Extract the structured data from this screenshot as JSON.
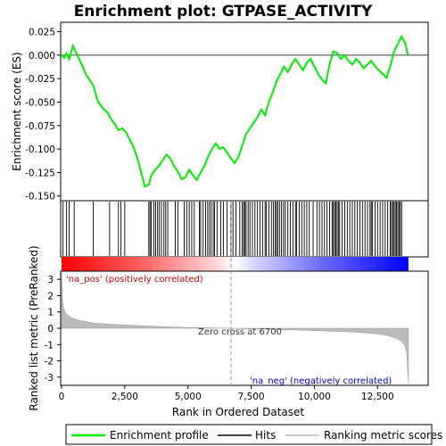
{
  "chart_data": {
    "type": "line",
    "title": "Enrichment plot: GTPASE_ACTIVITY",
    "upper_panel": {
      "ylabel": "Enrichment score (ES)",
      "ylim": [
        -0.155,
        0.035
      ],
      "yticks": [
        0.025,
        0.0,
        -0.025,
        -0.05,
        -0.075,
        -0.1,
        -0.125,
        -0.15
      ],
      "ytick_labels": [
        "0.025",
        "0.000",
        "-0.025",
        "-0.050",
        "-0.075",
        "-0.100",
        "-0.125",
        "-0.150"
      ],
      "series_color": "#00ee00",
      "es_profile": {
        "x": [
          0,
          100,
          200,
          300,
          450,
          550,
          800,
          1000,
          1250,
          1450,
          1650,
          1850,
          1950,
          2100,
          2250,
          2400,
          2550,
          2700,
          2850,
          3000,
          3150,
          3300,
          3450,
          3550,
          3700,
          3850,
          4000,
          4150,
          4300,
          4450,
          4600,
          4750,
          4900,
          5050,
          5200,
          5350,
          5500,
          5650,
          5800,
          5950,
          6100,
          6250,
          6400,
          6550,
          6700,
          6850,
          7000,
          7150,
          7300,
          7450,
          7600,
          7750,
          7900,
          8050,
          8200,
          8350,
          8500,
          8650,
          8800,
          8950,
          9100,
          9250,
          9400,
          9550,
          9700,
          9850,
          10000,
          10150,
          10300,
          10450,
          10600,
          10750,
          10900,
          11050,
          11200,
          11350,
          11500,
          11650,
          11800,
          11950,
          12100,
          12250,
          12400,
          12550,
          12700,
          12850,
          13000,
          13150,
          13300,
          13450,
          13600,
          13700
        ],
        "y": [
          0.0,
          -0.003,
          0.002,
          -0.004,
          0.01,
          0.004,
          -0.01,
          -0.022,
          -0.032,
          -0.05,
          -0.057,
          -0.062,
          -0.068,
          -0.073,
          -0.08,
          -0.078,
          -0.082,
          -0.09,
          -0.098,
          -0.11,
          -0.125,
          -0.14,
          -0.138,
          -0.128,
          -0.122,
          -0.118,
          -0.112,
          -0.106,
          -0.11,
          -0.118,
          -0.124,
          -0.132,
          -0.13,
          -0.122,
          -0.128,
          -0.133,
          -0.125,
          -0.118,
          -0.108,
          -0.1,
          -0.094,
          -0.1,
          -0.098,
          -0.104,
          -0.11,
          -0.115,
          -0.108,
          -0.096,
          -0.084,
          -0.078,
          -0.072,
          -0.066,
          -0.058,
          -0.064,
          -0.05,
          -0.04,
          -0.028,
          -0.02,
          -0.012,
          -0.018,
          -0.01,
          -0.004,
          -0.01,
          -0.016,
          -0.008,
          -0.004,
          -0.012,
          -0.02,
          -0.026,
          -0.03,
          -0.01,
          0.004,
          0.002,
          -0.004,
          0.0,
          -0.006,
          -0.01,
          -0.004,
          -0.008,
          -0.014,
          -0.01,
          -0.006,
          -0.012,
          -0.016,
          -0.02,
          -0.024,
          -0.012,
          0.004,
          0.012,
          0.02,
          0.012,
          0.0
        ]
      },
      "hits": [
        60,
        200,
        300,
        500,
        1250,
        1900,
        2250,
        2350,
        2500,
        3450,
        3500,
        3550,
        3650,
        3720,
        3800,
        3870,
        3950,
        4050,
        4120,
        4200,
        4500,
        4600,
        4850,
        4950,
        5050,
        5150,
        5250,
        5450,
        5500,
        5600,
        5700,
        5780,
        5850,
        5920,
        6000,
        6050,
        6150,
        6300,
        6400,
        6550,
        6700,
        6780,
        6900,
        7050,
        7150,
        7200,
        7250,
        7300,
        7380,
        7450,
        7550,
        7650,
        7750,
        7850,
        7950,
        8050,
        8100,
        8200,
        8300,
        8380,
        8450,
        8500,
        8550,
        8620,
        8700,
        8780,
        8850,
        8950,
        9050,
        9150,
        9250,
        9300,
        9400,
        9500,
        9600,
        9700,
        9800,
        9950,
        10100,
        10200,
        10300,
        10400,
        10500,
        10600,
        10700,
        10750,
        10800,
        10850,
        10900,
        10950,
        11000,
        11100,
        11200,
        11300,
        11400,
        11500,
        11600,
        11700,
        11800,
        11900,
        12000,
        12100,
        12200,
        12250,
        12300,
        12400,
        12500,
        12600,
        12700,
        12800,
        12900,
        13000,
        13050,
        13100,
        13150,
        13200,
        13250,
        13300,
        13350,
        13400,
        13450
      ]
    },
    "lower_panel": {
      "ylabel": "Ranked list metric (PreRanked)",
      "ylim": [
        -3.5,
        3.5
      ],
      "yticks": [
        3,
        2,
        1,
        0,
        -1,
        -2,
        -3
      ],
      "ytick_labels": [
        "3",
        "2",
        "1",
        "0",
        "-1",
        "-2",
        "-3"
      ],
      "xlabel": "Rank in Ordered Dataset",
      "metric": {
        "x": [
          0,
          30,
          80,
          150,
          250,
          400,
          600,
          900,
          1300,
          2000,
          3000,
          4000,
          5000,
          6000,
          6700,
          7500,
          8500,
          9500,
          10500,
          11500,
          12000,
          12500,
          12900,
          13200,
          13400,
          13550,
          13650,
          13720
        ],
        "y": [
          3.4,
          1.8,
          1.25,
          0.95,
          0.8,
          0.65,
          0.52,
          0.42,
          0.32,
          0.24,
          0.17,
          0.1,
          0.05,
          0.02,
          0.0,
          -0.04,
          -0.08,
          -0.12,
          -0.17,
          -0.23,
          -0.28,
          -0.35,
          -0.45,
          -0.6,
          -0.75,
          -1.0,
          -1.5,
          -3.4
        ]
      },
      "pos_label": "'na_pos' (positively correlated)",
      "neg_label": "'na_neg' (negatively correlated)",
      "zero_cross_label": "Zero cross at 6700",
      "zero_cross": 6700
    },
    "xlim": [
      0,
      14500
    ],
    "xticks": [
      0,
      2500,
      5000,
      7500,
      10000,
      12500
    ],
    "xtick_labels": [
      "0",
      "2,500",
      "5,000",
      "7,500",
      "10,000",
      "12,500"
    ],
    "colors": {
      "pos": "#dd0000",
      "neg": "#0000dd",
      "profile": "#00ee00",
      "metric_fill": "#bbbbbb"
    },
    "legend": {
      "position": "bottom",
      "items": [
        {
          "label": "Enrichment profile",
          "color": "#00ee00"
        },
        {
          "label": "Hits",
          "color": "#000000"
        },
        {
          "label": "Ranking metric scores",
          "color": "#bbbbbb"
        }
      ]
    }
  }
}
